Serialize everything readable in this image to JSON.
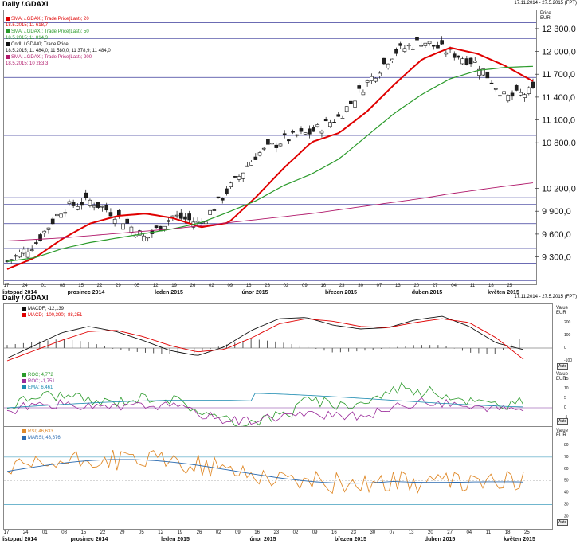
{
  "main": {
    "title": "Daily /.GDAXI",
    "range": "17.11.2014 - 27.5.2015 (FPT)",
    "axis_unit": [
      "Price",
      "EUR"
    ],
    "legend": [
      {
        "label": "SMA; /.GDAXI; Trade Price(Last); 20",
        "value": "18.5.2015; 11 618,7",
        "color": "#e00000",
        "sw": "#e00000"
      },
      {
        "label": "SMA; /.GDAXI; Trade Price(Last); 50",
        "value": "18.5.2015; 11 814,3",
        "color": "#2a9a2a",
        "sw": "#2a9a2a"
      },
      {
        "label": "Cndl; /.GDAXI; Trade Price",
        "value": "18.5.2015; 11 484,0; 11 580,0; 11 378,9; 11 484,0",
        "color": "#111",
        "sw": "#111"
      },
      {
        "label": "SMA; /.GDAXI; Trade Price(Last); 200",
        "value": "18.5.2015; 10 283,3",
        "color": "#b0186a",
        "sw": "#b0186a"
      }
    ],
    "price_ticks": [
      "12 300,0",
      "12 000,0",
      "11 700,0",
      "11 400,0",
      "11 100,0",
      "10 800,0",
      "10 200,0",
      "9 900,0",
      "9 600,0",
      "9 300,0"
    ],
    "hlines": [
      "12 387,6",
      "12 178,9",
      "11 668,6",
      "10 906,5",
      "10 089,5",
      "10 000,0",
      "9 748,3",
      "9 420,6",
      "9 228,4",
      "9 000,0"
    ],
    "xticks": [
      "17",
      "24",
      "01",
      "08",
      "15",
      "22",
      "29",
      "05",
      "12",
      "19",
      "26",
      "02",
      "09",
      "16",
      "23",
      "02",
      "09",
      "16",
      "23",
      "30",
      "07",
      "13",
      "20",
      "27",
      "04",
      "11",
      "18",
      "25"
    ],
    "months": [
      "listopad 2014",
      "prosinec 2014",
      "leden 2015",
      "únor 2015",
      "březen 2015",
      "duben 2015",
      "květen 2015"
    ]
  },
  "macd": {
    "title": "Daily /.GDAXI",
    "range": "17.11.2014 - 27.5.2015 (FPT)",
    "legend": [
      {
        "label": "MACDF; -12,139",
        "color": "#111"
      },
      {
        "label": "MACD; -100,390; -88,251",
        "color": "#e00000"
      }
    ],
    "axis_unit": [
      "Value",
      "EUR"
    ],
    "ticks": [
      "200",
      "100",
      "0",
      "-100"
    ],
    "auto": "Auto"
  },
  "roc": {
    "legend": [
      {
        "label": "ROC; 4,772",
        "color": "#2a9a2a"
      },
      {
        "label": "ROC; -1,751",
        "color": "#9a2a9a"
      },
      {
        "label": "EMA; 6,461",
        "color": "#1a8ab0"
      }
    ],
    "axis_unit": [
      "Value",
      "EUR"
    ],
    "ticks": [
      "15",
      "10",
      "5",
      "0",
      "-5"
    ],
    "auto": "Auto"
  },
  "rsi": {
    "legend": [
      {
        "label": "RSI; 46,633",
        "color": "#e08a2a"
      },
      {
        "label": "MARSI; 43,676",
        "color": "#2a6ab0"
      }
    ],
    "axis_unit": [
      "Value",
      "EUR"
    ],
    "ticks": [
      "80",
      "70",
      "60",
      "50",
      "40",
      "30",
      "20"
    ],
    "auto": "Auto"
  },
  "chart_data": [
    {
      "type": "candlestick",
      "title": "Daily /.GDAXI",
      "ylabel": "Price EUR",
      "ylim": [
        8950,
        12550
      ],
      "series": [
        {
          "name": "SMA 20",
          "values": [
            9150,
            9300,
            9550,
            9750,
            9850,
            9880,
            9820,
            9700,
            9760,
            10100,
            10480,
            10820,
            10940,
            11220,
            11580,
            11910,
            12060,
            11980,
            11820,
            11618.7
          ]
        },
        {
          "name": "SMA 50",
          "values": [
            9250,
            9300,
            9420,
            9500,
            9560,
            9620,
            9680,
            9760,
            9900,
            10050,
            10250,
            10400,
            10600,
            10900,
            11200,
            11450,
            11650,
            11760,
            11800,
            11814.3
          ]
        },
        {
          "name": "SMA 200",
          "values": [
            9520,
            9540,
            9560,
            9590,
            9620,
            9650,
            9680,
            9720,
            9760,
            9800,
            9840,
            9880,
            9930,
            9980,
            10030,
            10080,
            10140,
            10190,
            10240,
            10283.3
          ]
        },
        {
          "name": "Close",
          "values": [
            9250,
            9480,
            9950,
            10050,
            9850,
            9550,
            9850,
            9750,
            10200,
            10650,
            10850,
            10950,
            11150,
            11600,
            12000,
            12150,
            12000,
            11850,
            11400,
            11484
          ]
        }
      ],
      "last_candle": {
        "date": "18.5.2015",
        "open": 11484.0,
        "high": 11580.0,
        "low": 11378.9,
        "close": 11484.0
      }
    },
    {
      "type": "line",
      "title": "",
      "series": [
        {
          "name": "MACDF",
          "values": [
            -80,
            20,
            120,
            170,
            130,
            60,
            -20,
            -60,
            10,
            140,
            230,
            240,
            180,
            150,
            160,
            220,
            250,
            170,
            40,
            -12.139
          ]
        },
        {
          "name": "MACD",
          "values": [
            -100,
            -20,
            60,
            130,
            140,
            90,
            20,
            -30,
            -10,
            80,
            190,
            230,
            210,
            170,
            160,
            200,
            230,
            200,
            80,
            -88.251
          ]
        }
      ]
    }
  ]
}
